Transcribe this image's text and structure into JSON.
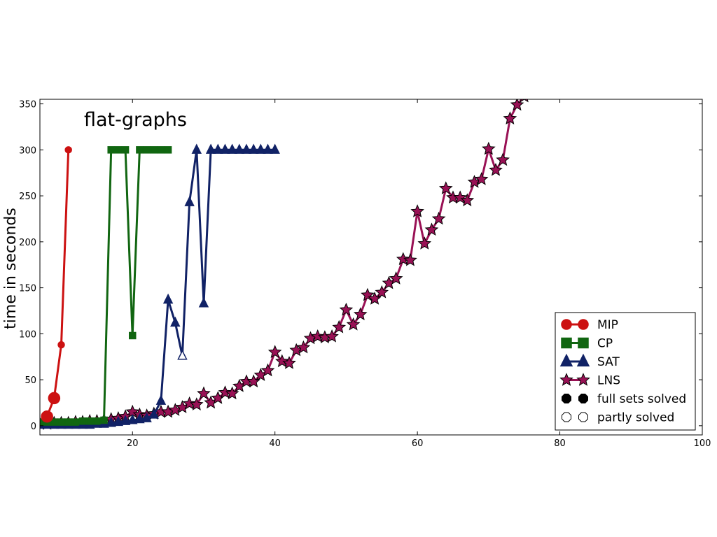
{
  "chart_data": {
    "type": "line",
    "title": "flat-graphs",
    "xlabel": "",
    "ylabel": "time in seconds",
    "xlim": [
      7,
      100
    ],
    "ylim": [
      -10,
      355
    ],
    "xticks": [
      20,
      40,
      60,
      80,
      100
    ],
    "yticks": [
      0,
      50,
      100,
      150,
      200,
      250,
      300,
      350
    ],
    "grid": false,
    "legend_position": "lower-right",
    "series": [
      {
        "name": "MIP",
        "color": "#cc1111",
        "marker": "circle",
        "points": [
          {
            "x": 8,
            "y": 10,
            "solved": "full",
            "size": "large"
          },
          {
            "x": 9,
            "y": 30,
            "solved": "full",
            "size": "large"
          },
          {
            "x": 10,
            "y": 88,
            "solved": "full",
            "size": "small"
          },
          {
            "x": 11,
            "y": 300,
            "solved": "full",
            "size": "small"
          }
        ]
      },
      {
        "name": "CP",
        "color": "#116611",
        "marker": "square",
        "points": [
          {
            "x": 7,
            "y": 4,
            "solved": "full"
          },
          {
            "x": 8,
            "y": 4,
            "solved": "full"
          },
          {
            "x": 9,
            "y": 4,
            "solved": "full"
          },
          {
            "x": 10,
            "y": 4,
            "solved": "full"
          },
          {
            "x": 11,
            "y": 4,
            "solved": "full"
          },
          {
            "x": 12,
            "y": 4,
            "solved": "full"
          },
          {
            "x": 13,
            "y": 5,
            "solved": "full"
          },
          {
            "x": 14,
            "y": 5,
            "solved": "full"
          },
          {
            "x": 15,
            "y": 5,
            "solved": "full"
          },
          {
            "x": 16,
            "y": 6,
            "solved": "full"
          },
          {
            "x": 17,
            "y": 300,
            "solved": "full"
          },
          {
            "x": 18,
            "y": 300,
            "solved": "full"
          },
          {
            "x": 19,
            "y": 300,
            "solved": "full"
          },
          {
            "x": 20,
            "y": 98,
            "solved": "full"
          },
          {
            "x": 21,
            "y": 300,
            "solved": "full"
          },
          {
            "x": 22,
            "y": 300,
            "solved": "full"
          },
          {
            "x": 23,
            "y": 300,
            "solved": "full"
          },
          {
            "x": 24,
            "y": 300,
            "solved": "full"
          },
          {
            "x": 25,
            "y": 300,
            "solved": "full"
          }
        ]
      },
      {
        "name": "SAT",
        "color": "#112266",
        "marker": "triangle",
        "points": [
          {
            "x": 7,
            "y": 1,
            "solved": "full"
          },
          {
            "x": 8,
            "y": 1,
            "solved": "full"
          },
          {
            "x": 9,
            "y": 1,
            "solved": "full"
          },
          {
            "x": 10,
            "y": 1,
            "solved": "full"
          },
          {
            "x": 11,
            "y": 1,
            "solved": "full"
          },
          {
            "x": 12,
            "y": 1,
            "solved": "full"
          },
          {
            "x": 13,
            "y": 1,
            "solved": "full"
          },
          {
            "x": 14,
            "y": 1,
            "solved": "full"
          },
          {
            "x": 15,
            "y": 2,
            "solved": "full"
          },
          {
            "x": 16,
            "y": 2,
            "solved": "full"
          },
          {
            "x": 17,
            "y": 3,
            "solved": "full"
          },
          {
            "x": 18,
            "y": 4,
            "solved": "full"
          },
          {
            "x": 19,
            "y": 5,
            "solved": "full"
          },
          {
            "x": 20,
            "y": 6,
            "solved": "full"
          },
          {
            "x": 21,
            "y": 7,
            "solved": "full"
          },
          {
            "x": 22,
            "y": 8,
            "solved": "full"
          },
          {
            "x": 23,
            "y": 12,
            "solved": "full"
          },
          {
            "x": 24,
            "y": 27,
            "solved": "full"
          },
          {
            "x": 25,
            "y": 137,
            "solved": "full"
          },
          {
            "x": 26,
            "y": 112,
            "solved": "full"
          },
          {
            "x": 27,
            "y": 76,
            "solved": "partly"
          },
          {
            "x": 28,
            "y": 243,
            "solved": "full"
          },
          {
            "x": 29,
            "y": 300,
            "solved": "full"
          },
          {
            "x": 30,
            "y": 133,
            "solved": "full"
          },
          {
            "x": 31,
            "y": 300,
            "solved": "full"
          },
          {
            "x": 32,
            "y": 300,
            "solved": "full"
          },
          {
            "x": 33,
            "y": 300,
            "solved": "full"
          },
          {
            "x": 34,
            "y": 300,
            "solved": "full"
          },
          {
            "x": 35,
            "y": 300,
            "solved": "full"
          },
          {
            "x": 36,
            "y": 300,
            "solved": "full"
          },
          {
            "x": 37,
            "y": 300,
            "solved": "full"
          },
          {
            "x": 38,
            "y": 300,
            "solved": "full"
          },
          {
            "x": 39,
            "y": 300,
            "solved": "full"
          },
          {
            "x": 40,
            "y": 300,
            "solved": "full"
          }
        ]
      },
      {
        "name": "LNS",
        "color": "#991155",
        "marker": "star",
        "points": [
          {
            "x": 7,
            "y": 2
          },
          {
            "x": 8,
            "y": 2
          },
          {
            "x": 9,
            "y": 3
          },
          {
            "x": 10,
            "y": 3
          },
          {
            "x": 11,
            "y": 3
          },
          {
            "x": 12,
            "y": 4
          },
          {
            "x": 13,
            "y": 4
          },
          {
            "x": 14,
            "y": 5
          },
          {
            "x": 15,
            "y": 5
          },
          {
            "x": 16,
            "y": 6
          },
          {
            "x": 17,
            "y": 7
          },
          {
            "x": 18,
            "y": 8
          },
          {
            "x": 19,
            "y": 10
          },
          {
            "x": 20,
            "y": 15
          },
          {
            "x": 21,
            "y": 12
          },
          {
            "x": 22,
            "y": 11
          },
          {
            "x": 23,
            "y": 13
          },
          {
            "x": 24,
            "y": 15
          },
          {
            "x": 25,
            "y": 15
          },
          {
            "x": 26,
            "y": 17
          },
          {
            "x": 27,
            "y": 20
          },
          {
            "x": 28,
            "y": 24
          },
          {
            "x": 29,
            "y": 23
          },
          {
            "x": 30,
            "y": 35
          },
          {
            "x": 31,
            "y": 25
          },
          {
            "x": 32,
            "y": 30
          },
          {
            "x": 33,
            "y": 36
          },
          {
            "x": 34,
            "y": 35
          },
          {
            "x": 35,
            "y": 43
          },
          {
            "x": 36,
            "y": 48
          },
          {
            "x": 37,
            "y": 48
          },
          {
            "x": 38,
            "y": 55
          },
          {
            "x": 39,
            "y": 60
          },
          {
            "x": 40,
            "y": 80
          },
          {
            "x": 41,
            "y": 70
          },
          {
            "x": 42,
            "y": 68
          },
          {
            "x": 43,
            "y": 82
          },
          {
            "x": 44,
            "y": 85
          },
          {
            "x": 45,
            "y": 95
          },
          {
            "x": 46,
            "y": 97
          },
          {
            "x": 47,
            "y": 96
          },
          {
            "x": 48,
            "y": 97
          },
          {
            "x": 49,
            "y": 107
          },
          {
            "x": 50,
            "y": 126
          },
          {
            "x": 51,
            "y": 110
          },
          {
            "x": 52,
            "y": 121
          },
          {
            "x": 53,
            "y": 142
          },
          {
            "x": 54,
            "y": 138
          },
          {
            "x": 55,
            "y": 145
          },
          {
            "x": 56,
            "y": 155
          },
          {
            "x": 57,
            "y": 160
          },
          {
            "x": 58,
            "y": 181
          },
          {
            "x": 59,
            "y": 180
          },
          {
            "x": 60,
            "y": 233
          },
          {
            "x": 61,
            "y": 198
          },
          {
            "x": 62,
            "y": 213
          },
          {
            "x": 63,
            "y": 225
          },
          {
            "x": 64,
            "y": 258
          },
          {
            "x": 65,
            "y": 248
          },
          {
            "x": 66,
            "y": 248
          },
          {
            "x": 67,
            "y": 245
          },
          {
            "x": 68,
            "y": 265
          },
          {
            "x": 69,
            "y": 268
          },
          {
            "x": 70,
            "y": 301
          },
          {
            "x": 71,
            "y": 278
          },
          {
            "x": 72,
            "y": 289
          },
          {
            "x": 73,
            "y": 334
          },
          {
            "x": 74,
            "y": 349
          },
          {
            "x": 75,
            "y": 358
          }
        ]
      }
    ],
    "legend": [
      {
        "label": "MIP",
        "kind": "series",
        "marker": "circle",
        "color": "#cc1111"
      },
      {
        "label": "CP",
        "kind": "series",
        "marker": "square",
        "color": "#116611"
      },
      {
        "label": "SAT",
        "kind": "series",
        "marker": "triangle",
        "color": "#112266"
      },
      {
        "label": "LNS",
        "kind": "series",
        "marker": "star",
        "color": "#991155"
      },
      {
        "label": "full sets solved",
        "kind": "marker",
        "fill": "#000000"
      },
      {
        "label": "partly solved",
        "kind": "marker",
        "fill": "#ffffff"
      }
    ]
  }
}
